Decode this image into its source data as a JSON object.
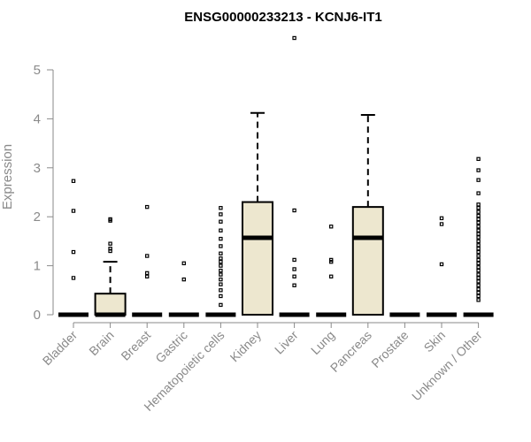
{
  "colors": {
    "box_fill": "#ede7cf",
    "stroke": "#000000",
    "axis": "#8a8a8a",
    "text_muted": "#8a8a8a"
  },
  "chart_data": {
    "type": "boxplot",
    "title": "ENSG00000233213 - KCNJ6-IT1",
    "xlabel": "",
    "ylabel": "Expression",
    "ylim": [
      0,
      5.6
    ],
    "yticks": [
      0,
      1,
      2,
      3,
      4,
      5
    ],
    "grid": false,
    "categories": [
      "Bladder",
      "Brain",
      "Breast",
      "Gastric",
      "Hematopoietic cells",
      "Kidney",
      "Liver",
      "Lung",
      "Pancreas",
      "Prostate",
      "Skin",
      "Unknown / Other"
    ],
    "boxes": [
      {
        "category": "Bladder",
        "q1": 0,
        "median": 0,
        "q3": 0,
        "whisker_low": 0,
        "whisker_high": 0,
        "outliers": [
          0.75,
          1.28,
          2.12,
          2.73
        ]
      },
      {
        "category": "Brain",
        "q1": 0,
        "median": 0,
        "q3": 0.43,
        "whisker_low": 0,
        "whisker_high": 1.08,
        "outliers": [
          1.3,
          1.35,
          1.45,
          1.92,
          1.95
        ]
      },
      {
        "category": "Breast",
        "q1": 0,
        "median": 0,
        "q3": 0,
        "whisker_low": 0,
        "whisker_high": 0,
        "outliers": [
          0.78,
          0.85,
          1.2,
          2.2
        ]
      },
      {
        "category": "Gastric",
        "q1": 0,
        "median": 0,
        "q3": 0,
        "whisker_low": 0,
        "whisker_high": 0,
        "outliers": [
          0.72,
          1.05
        ]
      },
      {
        "category": "Hematopoietic cells",
        "q1": 0,
        "median": 0,
        "q3": 0,
        "whisker_low": 0,
        "whisker_high": 0,
        "outliers": [
          0.2,
          0.38,
          0.5,
          0.62,
          0.72,
          0.82,
          0.9,
          1.0,
          1.08,
          1.15,
          1.25,
          1.4,
          1.55,
          1.72,
          1.9,
          2.05,
          2.18
        ]
      },
      {
        "category": "Kidney",
        "q1": 0,
        "median": 1.57,
        "q3": 2.3,
        "whisker_low": 0,
        "whisker_high": 4.12,
        "outliers": []
      },
      {
        "category": "Liver",
        "q1": 0,
        "median": 0,
        "q3": 0,
        "whisker_low": 0,
        "whisker_high": 0,
        "outliers": [
          0.6,
          0.78,
          0.93,
          1.12,
          2.13,
          5.65
        ]
      },
      {
        "category": "Lung",
        "q1": 0,
        "median": 0,
        "q3": 0,
        "whisker_low": 0,
        "whisker_high": 0,
        "outliers": [
          0.78,
          1.08,
          1.12,
          1.8
        ]
      },
      {
        "category": "Pancreas",
        "q1": 0,
        "median": 1.57,
        "q3": 2.2,
        "whisker_low": 0,
        "whisker_high": 4.08,
        "outliers": []
      },
      {
        "category": "Prostate",
        "q1": 0,
        "median": 0,
        "q3": 0,
        "whisker_low": 0,
        "whisker_high": 0,
        "outliers": []
      },
      {
        "category": "Skin",
        "q1": 0,
        "median": 0,
        "q3": 0,
        "whisker_low": 0,
        "whisker_high": 0,
        "outliers": [
          1.03,
          1.85,
          1.97
        ]
      },
      {
        "category": "Unknown / Other",
        "q1": 0,
        "median": 0,
        "q3": 0,
        "whisker_low": 0,
        "whisker_high": 0,
        "outliers": [
          0.3,
          0.38,
          0.45,
          0.52,
          0.6,
          0.68,
          0.75,
          0.82,
          0.9,
          0.97,
          1.05,
          1.12,
          1.2,
          1.28,
          1.35,
          1.42,
          1.5,
          1.58,
          1.65,
          1.72,
          1.8,
          1.88,
          1.95,
          2.02,
          2.1,
          2.18,
          2.25,
          2.48,
          2.75,
          2.95,
          3.18
        ]
      }
    ]
  }
}
